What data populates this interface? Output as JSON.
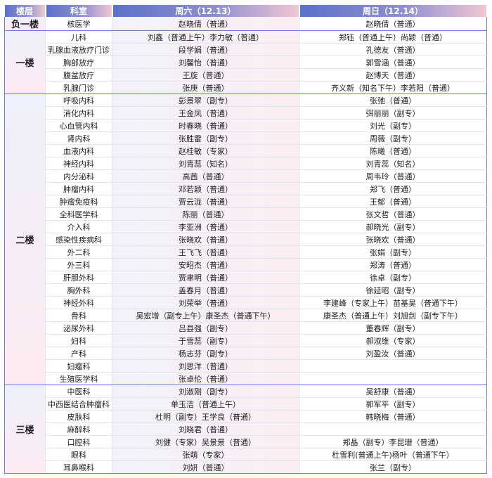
{
  "header": {
    "floor": "楼层",
    "dept": "科室",
    "sat": "周六（12.13）",
    "sun": "周日（12.14）"
  },
  "colors": {
    "header_start": "#5b72c8",
    "header_end": "#f0c7d3",
    "border": "#6a7fd0"
  },
  "floors": [
    {
      "name": "负一楼",
      "rows": [
        {
          "dept": "核医学",
          "sat": "赵晓倩（普通）",
          "sun": "赵晓倩（普通）"
        }
      ]
    },
    {
      "name": "一楼",
      "rows": [
        {
          "dept": "儿科",
          "sat": "刘鑫（普通上午）李力敏（普通）",
          "sun": "郑钰（普通上午）尚颖（普通）"
        },
        {
          "dept": "乳腺血液放疗门诊",
          "sat": "段学娟（普通）",
          "sun": "孔德友（普通）"
        },
        {
          "dept": "胸部放疗",
          "sat": "刘馨怡（普通）",
          "sun": "郭雪涵（普通）"
        },
        {
          "dept": "腹盆放疗",
          "sat": "王旋（普通）",
          "sun": "赵博天（普通）"
        },
        {
          "dept": "乳腺门诊",
          "sat": "张庚（普通）",
          "sun": "齐义新（知名下午）李若阳（普通）"
        }
      ]
    },
    {
      "name": "二楼",
      "rows": [
        {
          "dept": "呼吸内科",
          "sat": "彭景翠（副专）",
          "sun": "张弛（普通）"
        },
        {
          "dept": "消化内科",
          "sat": "王金凤（普通）",
          "sun": "弭丽丽（副专）"
        },
        {
          "dept": "心血管内科",
          "sat": "时春晓（普通）",
          "sun": "刘光（副专）"
        },
        {
          "dept": "肾内科",
          "sat": "张胜雷（副专）",
          "sun": "周薇（副专）"
        },
        {
          "dept": "血液内科",
          "sat": "赵桂敏（专家）",
          "sun": "陈曦（普通）"
        },
        {
          "dept": "神经内科",
          "sat": "刘青蕊（知名）",
          "sun": "刘青蕊（知名）"
        },
        {
          "dept": "内分泌科",
          "sat": "高茜（普通）",
          "sun": "周韦玲（普通）"
        },
        {
          "dept": "肿瘤内科",
          "sat": "邓若颖（普通）",
          "sun": "郑飞（普通）"
        },
        {
          "dept": "肿瘤免疫科",
          "sat": "贾云泷（普通）",
          "sun": "王郁（普通）"
        },
        {
          "dept": "全科医学科",
          "sat": "陈丽（普通）",
          "sun": "张文哲（普通）"
        },
        {
          "dept": "介入科",
          "sat": "李亚洲（普通）",
          "sun": "郝晓光（副专）"
        },
        {
          "dept": "感染性疾病科",
          "sat": "张晓欢（普通）",
          "sun": "张晓欢（普通）"
        },
        {
          "dept": "外二科",
          "sat": "王飞飞（普通）",
          "sun": "张娟（副专）"
        },
        {
          "dept": "外三科",
          "sat": "安昭杰（普通）",
          "sun": "郑涛（普通）"
        },
        {
          "dept": "肝胆外科",
          "sat": "贾聿明（普通）",
          "sun": "徐卓（副专）"
        },
        {
          "dept": "胸外科",
          "sat": "盖春月（普通）",
          "sun": "徐延昭（副专）"
        },
        {
          "dept": "神经外科",
          "sat": "刘荣举（普通）",
          "sun": "李建峰（专家上午）苗基昊（普通下午）"
        },
        {
          "dept": "骨科",
          "sat": "吴宏增（副专上午）康圣杰（普通下午）",
          "sun": "康圣杰（普通上午）刘旭剑（副专下午）"
        },
        {
          "dept": "泌尿外科",
          "sat": "吕县强（副专）",
          "sun": "董春辉（副专）"
        },
        {
          "dept": "妇科",
          "sat": "于雪蕊（副专）",
          "sun": "郝淑维（专家）"
        },
        {
          "dept": "产科",
          "sat": "杨志芬（副专）",
          "sun": "刘盈汝（普通）"
        },
        {
          "dept": "妇瘤科",
          "sat": "刘思洋（普通）",
          "sun": ""
        },
        {
          "dept": "生殖医学科",
          "sat": "张卓伦（普通）",
          "sun": ""
        }
      ]
    },
    {
      "name": "三楼",
      "rows": [
        {
          "dept": "中医科",
          "sat": "刘淑刚（副专）",
          "sun": "吴舒康（普通）"
        },
        {
          "dept": "中西医结合肿瘤科",
          "sat": "单玉洁（普通上午）",
          "sun": "郭军平（副专）"
        },
        {
          "dept": "皮肤科",
          "sat": "杜明（副专）王学良（普通）",
          "sun": "韩晓梅（普通）"
        },
        {
          "dept": "麻醉科",
          "sat": "刘晓君（普通）",
          "sun": ""
        },
        {
          "dept": "口腔科",
          "sat": "刘健（专家）吴景景（普通）",
          "sun": "郑晶（副专）李昆珊（普通）"
        },
        {
          "dept": "眼科",
          "sat": "张萌（专家）",
          "sun": "杜雪利(普通上午)杨叶（普通下午）"
        },
        {
          "dept": "耳鼻喉科",
          "sat": "刘妍（普通）",
          "sun": "张兰（副专）"
        }
      ]
    }
  ]
}
